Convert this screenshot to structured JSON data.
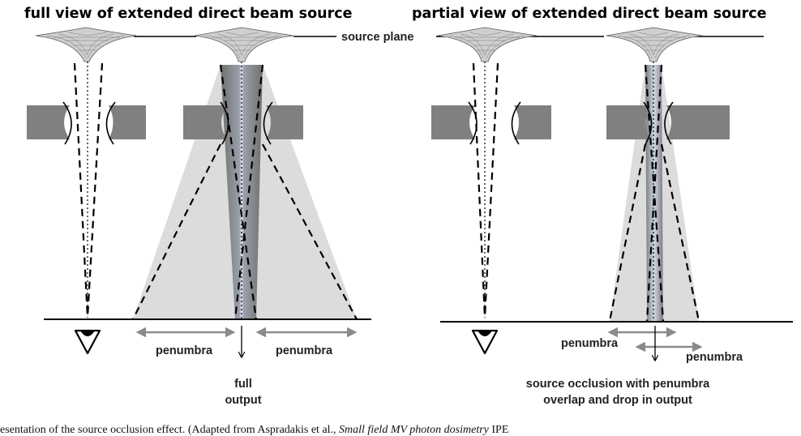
{
  "left_panel": {
    "title": "full view of extended direct beam source",
    "source_plane_label": "source plane",
    "penumbra_left_label": "penumbra",
    "penumbra_right_label": "penumbra",
    "output_label_line1": "full",
    "output_label_line2": "output"
  },
  "right_panel": {
    "title": "partial view of extended direct beam source",
    "penumbra_left_label": "penumbra",
    "penumbra_right_label": "penumbra",
    "output_label_line1": "source occlusion with penumbra",
    "output_label_line2": "overlap and drop in output"
  },
  "caption": {
    "text_start": "esentation of the source occlusion effect. (Adapted from Aspradakis et al., ",
    "text_italic": "Small field MV photon dosimetry",
    "text_end": " IPE"
  }
}
